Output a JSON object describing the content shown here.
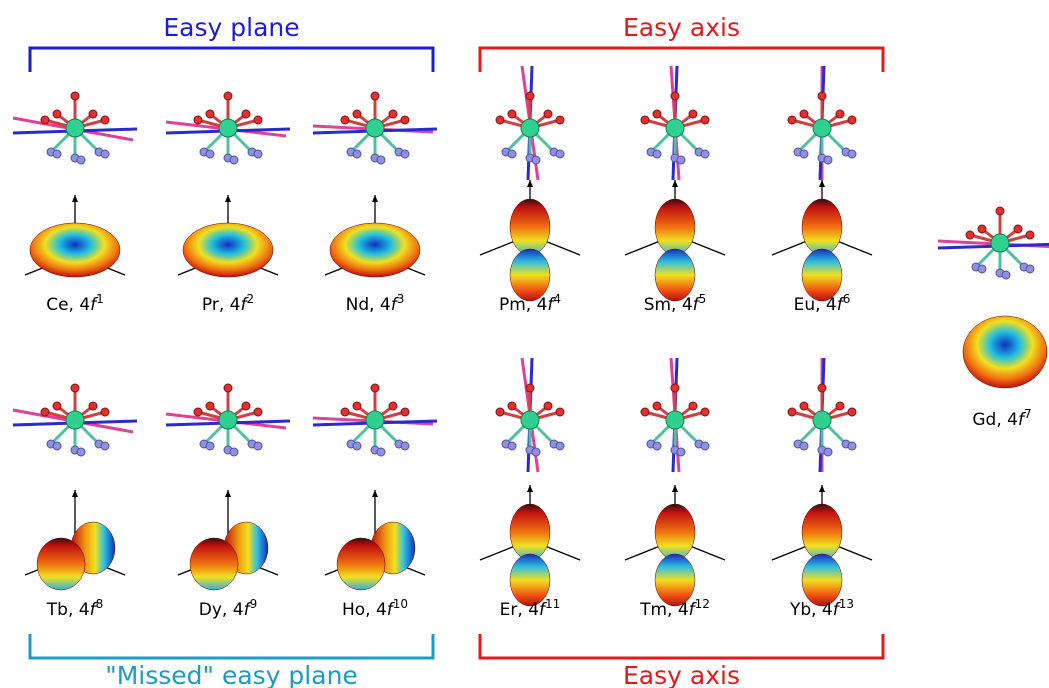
{
  "groups": [
    {
      "title": "Easy plane",
      "items": [
        {
          "name": "Ce, 4",
          "italic": "f",
          "sup": "1"
        },
        {
          "name": "Pr, 4",
          "italic": "f",
          "sup": "2"
        },
        {
          "name": "Nd, 4",
          "italic": "f",
          "sup": "3"
        }
      ]
    },
    {
      "title": "Easy axis",
      "items": [
        {
          "name": "Pm, 4",
          "italic": "f",
          "sup": "4"
        },
        {
          "name": "Sm, 4",
          "italic": "f",
          "sup": "5"
        },
        {
          "name": "Eu, 4",
          "italic": "f",
          "sup": "6"
        }
      ]
    },
    {
      "title": "\"Missed\" easy plane",
      "items": [
        {
          "name": "Tb, 4",
          "italic": "f",
          "sup": "8"
        },
        {
          "name": "Dy, 4",
          "italic": "f",
          "sup": "9"
        },
        {
          "name": "Ho, 4",
          "italic": "f",
          "sup": "10"
        }
      ]
    },
    {
      "title": "Easy axis",
      "items": [
        {
          "name": "Er, 4",
          "italic": "f",
          "sup": "11"
        },
        {
          "name": "Tm, 4",
          "italic": "f",
          "sup": "12"
        },
        {
          "name": "Yb, 4",
          "italic": "f",
          "sup": "13"
        }
      ]
    }
  ],
  "extra": {
    "name": "Gd, 4",
    "italic": "f",
    "sup": "7"
  }
}
